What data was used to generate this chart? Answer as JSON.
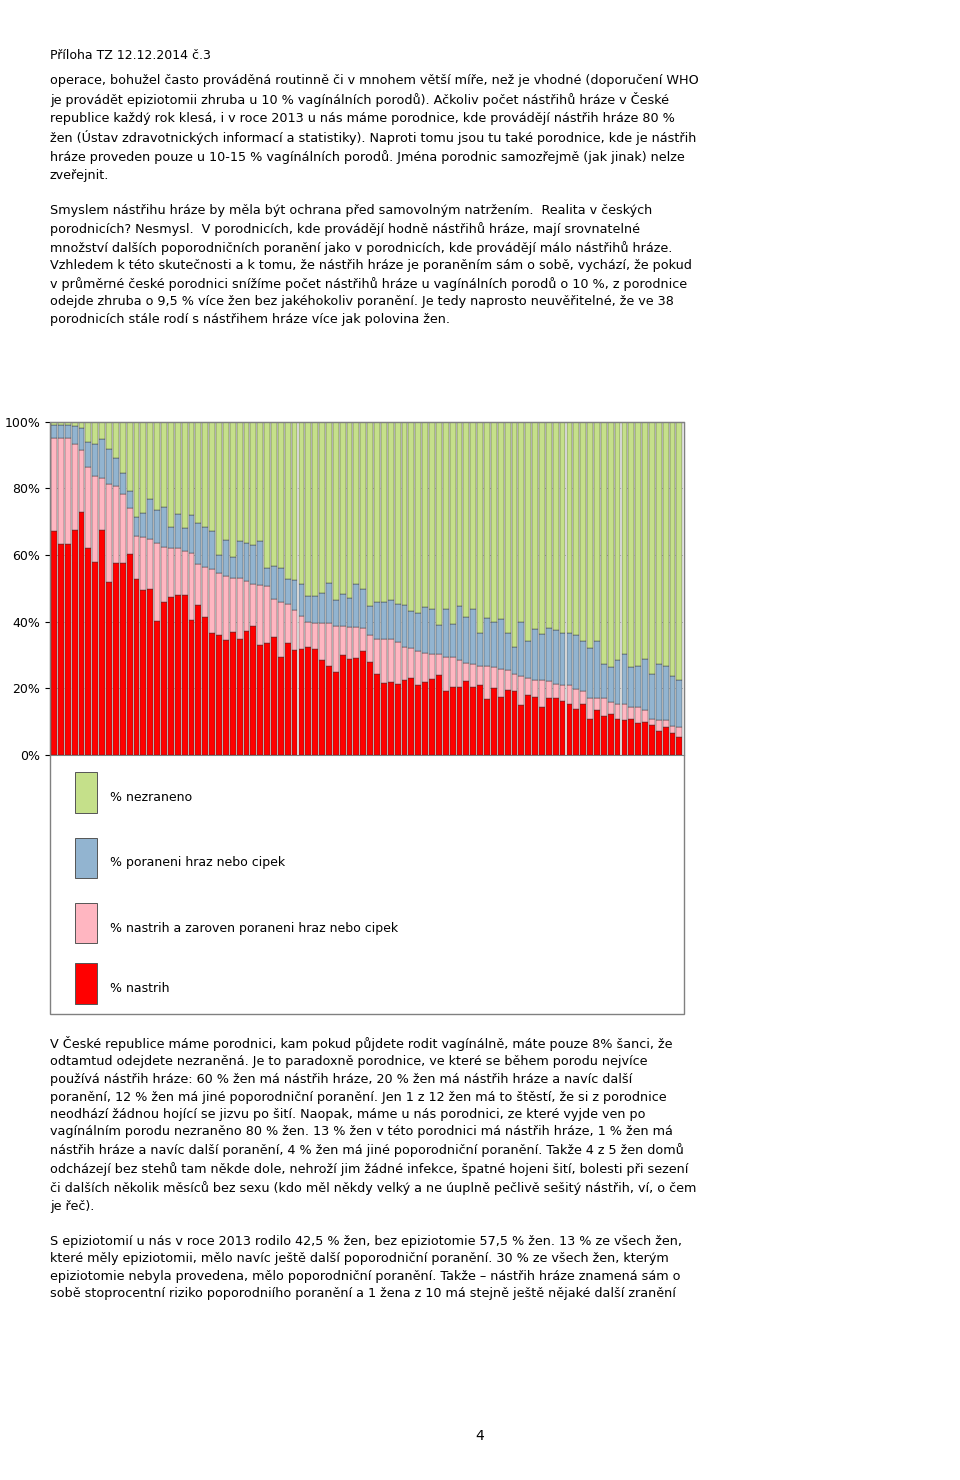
{
  "n_bars": 92,
  "colors": {
    "red": "#FF0000",
    "pink": "#FFB6C1",
    "blue": "#92B4D0",
    "green": "#C5E08A"
  },
  "legend_labels": [
    "% nezraneno",
    "% poraneni hraz nebo cipek",
    "% nastrih a zaroven poraneni hraz nebo cipek",
    "% nastrih"
  ],
  "yticks": [
    "0%",
    "20%",
    "40%",
    "60%",
    "80%",
    "100%"
  ],
  "background_color": "#FFFFFF",
  "bar_edge_color": "#333333",
  "chart_border": "#808080",
  "text_above": [
    "Příloha TZ 12.12.2014 č.3",
    "",
    "operace, bohužel často prováděná routinně či v mnohem větší míře, než je vhodné (doporučení WHO",
    "je provádět epiziotomii zhruba u 10 % vagínálních porodů). Ačkoliv počet nástřihů hráze v České",
    "republice každý rok klesá, i v roce 2013 u nás máme porodnice, kde provádějí nástřih hráze 80 %",
    "žen (Ústav zdravotnických informací a statistiky). Naproti tomu jsou tu také porodnice, kde je nástřih",
    "hráze proveden pouze u 10-15 % vagínálních porodů. Jména porodnic samozřejmě (jak jinak) nelze",
    "zveřejnit.",
    "",
    "Smyslem nástřihu hráze by měla být ochrana před samovolným natržením.  Realita v českých",
    "porodnicích? Nesmysl.  V porodnicích, kde provádějí hodně nástřihů hráze, mají srovnatelné",
    "množství dalších poporodničních poranění jako v porodnicích, kde provádějí málo nástřihů hráze.",
    "Vzhledem k této skutečnosti a k tomu, že nástřih hráze je poraněním sám o sobě, vychází, že pokud",
    "v průměrné české porodnici snížíme počet nástřihů hráze u vagínálních porodů o 10 %, z porodnice",
    "odejde zhruba o 9,5 % více žen bez jakéhokoliv poranění. Je tedy naprosto neuvěřitelné, že ve 38",
    "porodnicích stále rodí s nástřihem hráze více jak polovina žen."
  ],
  "text_below": [
    "V České republice máme porodnici, kam pokud půjdete rodit vagínálně, máte pouze 8% šanci, že",
    "odtamtud odejdete nezraněná. Je to paradoxně porodnice, ve které se během porodu nejvíce",
    "používá nástřih hráze: 60 % žen má nástřih hráze, 20 % žen má nástřih hráze a navíc další",
    "poranění, 12 % žen má jiné poporodniční poranění. Jen 1 z 12 žen má to štěstí, že si z porodnice",
    "neodhází žádnou hojící se jizvu po šití. Naopak, máme u nás porodnici, ze které vyjde ven po",
    "vagínálním porodu nezraněno 80 % žen. 13 % žen v této porodnici má nástřih hráze, 1 % žen má",
    "nástřih hráze a navíc další poranění, 4 % žen má jiné poporodniční poranění. Takže 4 z 5 žen domů",
    "odcházejí bez stehů tam někde dole, nehroží jim žádné infekce, špatné hojeni šití, bolesti při sezení",
    "či dalších několik měsíců bez sexu (kdo měl někdy velký a ne úuplně pečlivě sešitý nástřih, ví, o čem",
    "je řeč).",
    "",
    "S epiziotomií u nás v roce 2013 rodilo 42,5 % žen, bez epiziotomie 57,5 % žen. 13 % ze všech žen,",
    "které měly epiziotomii, mělo navíc ještě další poporodniční poranění. 30 % ze všech žen, kterým",
    "epiziotomie nebyla provedena, mělo poporodniční poranění. Takže – nástřih hráze znamená sám o",
    "sobě stoprocentní riziko poporodniího poranění a 1 žena z 10 má stejně ještě nějaké další zranění"
  ],
  "page_number": "4"
}
